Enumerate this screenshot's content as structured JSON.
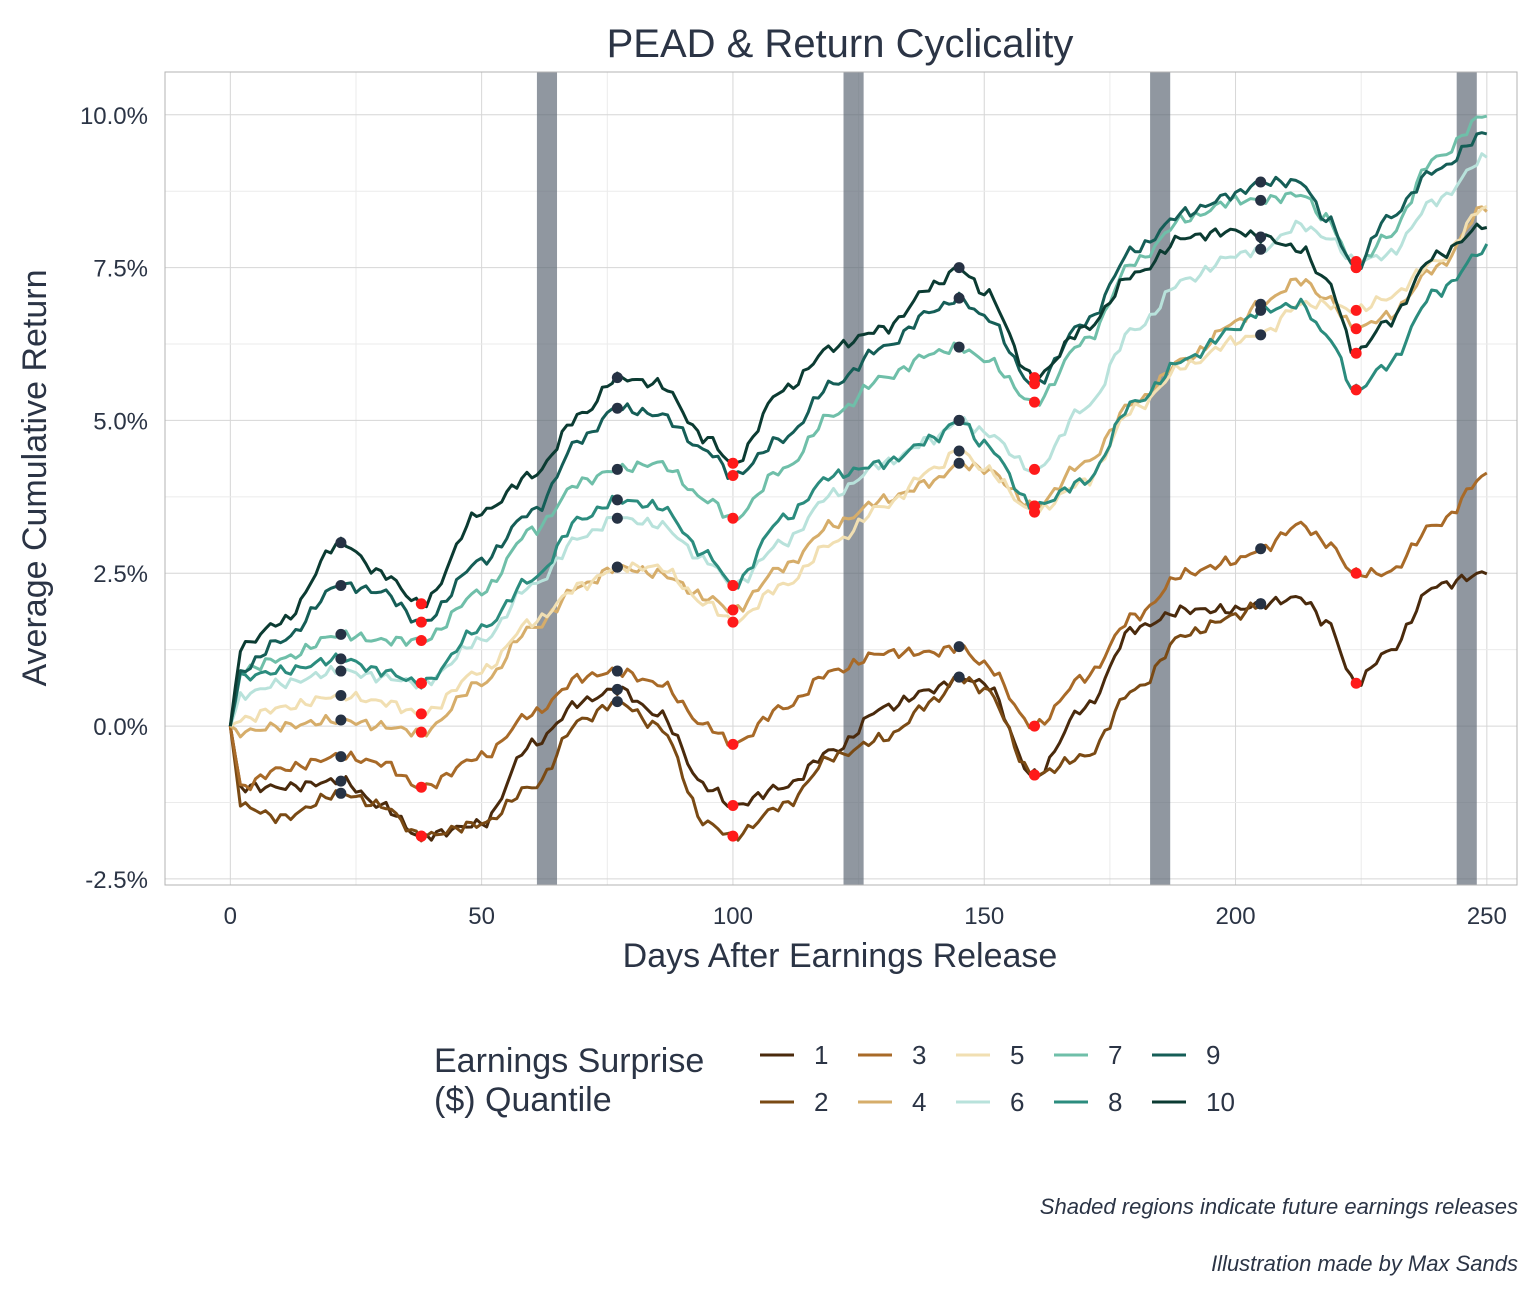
{
  "chart_data": {
    "type": "line",
    "title": "PEAD & Return Cyclicality",
    "xlabel": "Days After Earnings Release",
    "ylabel": "Average Cumulative Return",
    "xlim": [
      -13,
      256
    ],
    "ylim": [
      -2.6,
      10.7
    ],
    "x_ticks": [
      0,
      50,
      100,
      150,
      200,
      250
    ],
    "x_tick_labels": [
      "0",
      "50",
      "100",
      "150",
      "200",
      "250"
    ],
    "y_ticks": [
      -2.5,
      0,
      2.5,
      5,
      7.5,
      10
    ],
    "y_tick_labels": [
      "-2.5%",
      "0.0%",
      "2.5%",
      "5.0%",
      "7.5%",
      "10.0%"
    ],
    "grid": true,
    "shaded_regions": [
      [
        61,
        65
      ],
      [
        122,
        126
      ],
      [
        183,
        187
      ],
      [
        244,
        248
      ]
    ],
    "peak_days": [
      22,
      77,
      145,
      205
    ],
    "trough_days": [
      38,
      100,
      160,
      224
    ],
    "legend": {
      "title_line1": "Earnings Surprise",
      "title_line2": "($) Quantile",
      "position": "bottom"
    },
    "series": [
      {
        "name": "1",
        "color": "#4a2a0c",
        "x": [
          0,
          2,
          10,
          22,
          30,
          38,
          50,
          60,
          70,
          77,
          85,
          95,
          100,
          110,
          120,
          130,
          140,
          145,
          150,
          160,
          170,
          180,
          190,
          200,
          205,
          213,
          218,
          224,
          230,
          240,
          250
        ],
        "y": [
          0,
          -1.0,
          -1.0,
          -0.9,
          -1.3,
          -1.8,
          -1.6,
          -0.3,
          0.4,
          0.6,
          0.2,
          -1.0,
          -1.3,
          -1.0,
          -0.4,
          0.3,
          0.6,
          0.8,
          0.7,
          -0.8,
          0.3,
          1.6,
          1.9,
          1.9,
          2.0,
          2.1,
          1.7,
          0.7,
          1.2,
          2.3,
          2.5
        ]
      },
      {
        "name": "2",
        "color": "#7a4a14",
        "x": [
          0,
          2,
          10,
          22,
          30,
          38,
          50,
          60,
          70,
          77,
          85,
          95,
          100,
          110,
          120,
          130,
          140,
          145,
          150,
          160,
          170,
          180,
          190,
          200,
          205
        ],
        "y": [
          0,
          -1.3,
          -1.5,
          -1.1,
          -1.3,
          -1.8,
          -1.6,
          -1.0,
          0.1,
          0.4,
          0.0,
          -1.6,
          -1.8,
          -1.3,
          -0.5,
          -0.2,
          0.4,
          0.8,
          0.6,
          -0.8,
          -0.5,
          0.6,
          1.5,
          1.8,
          2.0
        ]
      },
      {
        "name": "3",
        "color": "#a86a28",
        "x": [
          0,
          2,
          10,
          22,
          30,
          38,
          50,
          60,
          70,
          77,
          85,
          95,
          100,
          110,
          120,
          130,
          140,
          145,
          150,
          160,
          170,
          180,
          190,
          200,
          205,
          213,
          218,
          224,
          230,
          240,
          250
        ],
        "y": [
          0,
          -1.0,
          -0.7,
          -0.5,
          -0.6,
          -1.0,
          -0.5,
          0.2,
          0.8,
          0.9,
          0.7,
          0.0,
          -0.3,
          0.3,
          0.9,
          1.2,
          1.2,
          1.3,
          1.0,
          0.0,
          0.8,
          1.8,
          2.5,
          2.7,
          2.9,
          3.3,
          3.0,
          2.5,
          2.5,
          3.3,
          4.1
        ]
      },
      {
        "name": "4",
        "color": "#d6ad6a",
        "x": [
          0,
          2,
          10,
          22,
          30,
          38,
          50,
          60,
          70,
          77,
          85,
          95,
          100,
          110,
          120,
          130,
          140,
          145,
          150,
          160,
          170,
          180,
          190,
          200,
          205,
          213,
          218,
          224,
          230,
          240,
          250
        ],
        "y": [
          0,
          -0.1,
          0.0,
          0.1,
          0.0,
          -0.1,
          0.7,
          1.6,
          2.3,
          2.6,
          2.5,
          2.1,
          1.9,
          2.6,
          3.3,
          3.7,
          4.0,
          4.3,
          4.2,
          3.6,
          4.3,
          5.3,
          6.0,
          6.6,
          6.9,
          7.3,
          7.0,
          6.5,
          6.7,
          7.5,
          8.5
        ]
      },
      {
        "name": "5",
        "color": "#f1dfb2",
        "x": [
          0,
          2,
          10,
          22,
          30,
          38,
          50,
          60,
          70,
          77,
          85,
          95,
          100,
          110,
          120,
          130,
          140,
          145,
          150,
          160,
          170,
          180,
          190,
          200,
          205,
          213,
          218,
          224,
          230,
          240,
          250
        ],
        "y": [
          0,
          0.1,
          0.3,
          0.5,
          0.4,
          0.2,
          0.9,
          1.7,
          2.3,
          2.6,
          2.6,
          2.0,
          1.7,
          2.3,
          3.0,
          3.6,
          4.2,
          4.5,
          4.2,
          3.5,
          4.0,
          5.2,
          5.9,
          6.3,
          6.4,
          6.9,
          6.9,
          6.8,
          7.0,
          7.6,
          8.5
        ]
      },
      {
        "name": "6",
        "color": "#b8e2db",
        "x": [
          0,
          2,
          10,
          22,
          30,
          38,
          50,
          60,
          70,
          77,
          85,
          95,
          100,
          110,
          120,
          130,
          140,
          145,
          150,
          160,
          170,
          180,
          190,
          200,
          205,
          213,
          218,
          224,
          230,
          240,
          250
        ],
        "y": [
          0,
          0.5,
          0.7,
          0.9,
          0.8,
          0.7,
          1.4,
          2.3,
          3.1,
          3.4,
          3.3,
          2.7,
          2.3,
          3.0,
          3.8,
          4.3,
          4.7,
          5.0,
          4.8,
          4.2,
          5.2,
          6.5,
          7.3,
          7.7,
          7.8,
          8.2,
          8.0,
          7.6,
          7.7,
          8.6,
          9.3
        ]
      },
      {
        "name": "7",
        "color": "#6fbfa9",
        "x": [
          0,
          2,
          10,
          22,
          30,
          38,
          50,
          60,
          70,
          77,
          85,
          95,
          100,
          110,
          120,
          130,
          140,
          145,
          150,
          160,
          170,
          180,
          190,
          200,
          205,
          213,
          218,
          224,
          230,
          240,
          250
        ],
        "y": [
          0,
          0.9,
          1.1,
          1.5,
          1.4,
          1.4,
          2.2,
          3.2,
          4.0,
          4.2,
          4.3,
          3.7,
          3.4,
          4.2,
          5.1,
          5.7,
          6.1,
          6.2,
          6.0,
          5.3,
          6.3,
          7.6,
          8.3,
          8.6,
          8.6,
          8.7,
          8.3,
          7.5,
          8.0,
          9.3,
          10.0
        ]
      },
      {
        "name": "8",
        "color": "#2b8c7e",
        "x": [
          0,
          2,
          10,
          22,
          30,
          38,
          50,
          60,
          70,
          77,
          85,
          95,
          100,
          110,
          120,
          130,
          140,
          145,
          150,
          160,
          170,
          180,
          190,
          200,
          205,
          213,
          218,
          224,
          230,
          240,
          250
        ],
        "y": [
          0,
          0.8,
          0.9,
          1.1,
          0.9,
          0.7,
          1.6,
          2.4,
          3.4,
          3.7,
          3.6,
          2.8,
          2.3,
          3.4,
          4.1,
          4.3,
          4.7,
          5.0,
          4.6,
          3.6,
          4.0,
          5.3,
          6.0,
          6.5,
          6.8,
          6.9,
          6.4,
          5.5,
          5.9,
          7.1,
          7.8
        ]
      },
      {
        "name": "9",
        "color": "#155e57",
        "x": [
          0,
          2,
          10,
          22,
          30,
          38,
          50,
          60,
          70,
          77,
          85,
          95,
          100,
          110,
          120,
          130,
          140,
          145,
          150,
          160,
          170,
          180,
          190,
          200,
          205,
          213,
          218,
          224,
          230,
          240,
          250
        ],
        "y": [
          0,
          0.9,
          1.4,
          2.3,
          2.2,
          1.7,
          2.7,
          3.5,
          4.7,
          5.2,
          5.1,
          4.5,
          4.1,
          4.7,
          5.6,
          6.2,
          6.8,
          7.0,
          6.7,
          5.6,
          6.6,
          7.8,
          8.4,
          8.7,
          8.9,
          8.9,
          8.3,
          7.5,
          8.3,
          9.1,
          9.7
        ]
      },
      {
        "name": "10",
        "color": "#0b3b32",
        "x": [
          0,
          2,
          10,
          22,
          30,
          38,
          50,
          60,
          70,
          77,
          85,
          95,
          100,
          110,
          120,
          130,
          140,
          145,
          150,
          160,
          170,
          180,
          190,
          200,
          205,
          213,
          218,
          224,
          230,
          240,
          250
        ],
        "y": [
          0,
          1.3,
          1.7,
          3.0,
          2.5,
          2.0,
          3.5,
          4.1,
          5.1,
          5.7,
          5.6,
          4.7,
          4.3,
          5.5,
          6.2,
          6.5,
          7.2,
          7.5,
          7.1,
          5.7,
          6.5,
          7.4,
          8.0,
          8.1,
          8.0,
          7.8,
          7.3,
          6.1,
          6.6,
          7.7,
          8.2
        ]
      }
    ],
    "peak_color": "#263244",
    "trough_color": "#ff1a1a",
    "shade_color": "#5b6573",
    "caption_line1": "Shaded regions indicate future earnings releases",
    "caption_line2": "Illustration made by Max Sands"
  }
}
